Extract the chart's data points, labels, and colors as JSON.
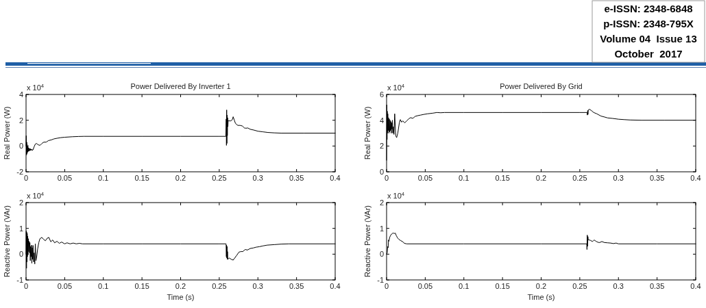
{
  "chart_data": [
    {
      "type": "line",
      "title": "Power Delivered By Inverter 1",
      "ylabel": "Real Power (W)",
      "annotations": [
        "x 10$^{4}$"
      ],
      "x": [
        0,
        0.0003,
        0.0006,
        0.0009,
        0.0012,
        0.0015,
        0.0018,
        0.0021,
        0.0024,
        0.0027,
        0.003,
        0.0035,
        0.004,
        0.0045,
        0.005,
        0.0055,
        0.006,
        0.0065,
        0.007,
        0.0075,
        0.008,
        0.0085,
        0.009,
        0.0105,
        0.012,
        0.0135,
        0.0155,
        0.018,
        0.0205,
        0.023,
        0.026,
        0.029,
        0.033,
        0.036,
        0.04,
        0.045,
        0.05,
        0.055,
        0.06,
        0.068,
        0.075,
        0.1,
        0.15,
        0.2,
        0.25,
        0.2585,
        0.259,
        0.2593,
        0.2596,
        0.2599,
        0.2602,
        0.2605,
        0.2608,
        0.2612,
        0.2615,
        0.262,
        0.265,
        0.267,
        0.268,
        0.2695,
        0.271,
        0.274,
        0.277,
        0.28,
        0.2825,
        0.2845,
        0.287,
        0.29,
        0.2945,
        0.3,
        0.3065,
        0.313,
        0.3212,
        0.33,
        0.36,
        0.4
      ],
      "series": [
        {
          "color": "#000000",
          "values": [
            0,
            0.8,
            -0.7,
            0.3,
            -0.6,
            0.1,
            -0.5,
            -0.05,
            -0.45,
            -0.1,
            -0.4,
            -0.15,
            -0.4,
            -0.2,
            -0.35,
            -0.2,
            -0.35,
            -0.25,
            -0.3,
            -0.25,
            -0.35,
            -0.3,
            -0.3,
            -0.05,
            0.15,
            0.2,
            0.1,
            0.05,
            0.2,
            0.3,
            0.3,
            0.42,
            0.48,
            0.55,
            0.6,
            0.65,
            0.68,
            0.7,
            0.72,
            0.74,
            0.75,
            0.75,
            0.75,
            0.75,
            0.75,
            0.75,
            2.1,
            0.05,
            2.8,
            0.2,
            2.4,
            0.8,
            2.2,
            1.5,
            2.0,
            1.95,
            1.95,
            2.05,
            2.27,
            2.0,
            1.75,
            1.6,
            1.6,
            1.55,
            1.4,
            1.38,
            1.4,
            1.3,
            1.24,
            1.15,
            1.1,
            1.05,
            1.02,
            1.0,
            1.0,
            1.0
          ]
        }
      ],
      "xlim": [
        0,
        0.4
      ],
      "xticks": [
        0,
        0.05,
        0.1,
        0.15,
        0.2,
        0.25,
        0.3,
        0.35,
        0.4
      ],
      "ylim": [
        -2,
        4
      ],
      "yticks": [
        -2,
        0,
        2,
        4
      ]
    },
    {
      "type": "line",
      "title": "Power Delivered By Grid",
      "ylabel": "Real Power (W)",
      "annotations": [
        "x 10$^{4}$",
        "e-ISSN: 2348-6848",
        "p-ISSN: 2348-795X",
        "Volume 04  Issue 13",
        "October  2017"
      ],
      "x": [
        0,
        0.0003,
        0.0006,
        0.0009,
        0.0012,
        0.0016,
        0.002,
        0.0025,
        0.003,
        0.0035,
        0.004,
        0.0045,
        0.005,
        0.0055,
        0.006,
        0.0065,
        0.007,
        0.0075,
        0.008,
        0.0088,
        0.0095,
        0.0105,
        0.0118,
        0.013,
        0.0145,
        0.0165,
        0.0178,
        0.0195,
        0.021,
        0.0235,
        0.026,
        0.0285,
        0.031,
        0.034,
        0.037,
        0.04,
        0.044,
        0.048,
        0.053,
        0.06,
        0.065,
        0.07,
        0.075,
        0.1,
        0.15,
        0.2,
        0.25,
        0.2595,
        0.2598,
        0.2602,
        0.2606,
        0.261,
        0.2625,
        0.265,
        0.268,
        0.272,
        0.2775,
        0.282,
        0.286,
        0.2925,
        0.3,
        0.307,
        0.315,
        0.33,
        0.36,
        0.4
      ],
      "series": [
        {
          "color": "#000000",
          "values": [
            0.9,
            5.2,
            2.5,
            4.7,
            3.0,
            4.5,
            3.2,
            4.2,
            3.0,
            4.1,
            3.1,
            4.0,
            3.2,
            3.9,
            3.0,
            3.8,
            3.3,
            4.0,
            3.0,
            3.5,
            2.9,
            4.5,
            2.8,
            2.65,
            3.0,
            3.8,
            4.05,
            3.85,
            3.95,
            3.8,
            3.95,
            4.1,
            4.2,
            4.15,
            4.3,
            4.35,
            4.4,
            4.45,
            4.5,
            4.55,
            4.6,
            4.58,
            4.6,
            4.6,
            4.6,
            4.6,
            4.6,
            4.6,
            4.4,
            4.75,
            4.45,
            4.8,
            4.85,
            4.75,
            4.6,
            4.5,
            4.32,
            4.25,
            4.18,
            4.14,
            4.08,
            4.05,
            4.02,
            4.0,
            4.0,
            4.0
          ]
        }
      ],
      "xlim": [
        0,
        0.4
      ],
      "xticks": [
        0,
        0.05,
        0.1,
        0.15,
        0.2,
        0.25,
        0.3,
        0.35,
        0.4
      ],
      "ylim": [
        0,
        6
      ],
      "yticks": [
        0,
        2,
        4,
        6
      ]
    },
    {
      "type": "line",
      "xlabel": "Time (s)",
      "ylabel": "Reactive Power (VAr)",
      "annotations": [
        "x 10$^{4}$"
      ],
      "x": [
        0,
        0.0003,
        0.0006,
        0.0009,
        0.0012,
        0.0015,
        0.0018,
        0.0021,
        0.0025,
        0.003,
        0.0035,
        0.004,
        0.0045,
        0.005,
        0.0055,
        0.006,
        0.0065,
        0.007,
        0.0075,
        0.008,
        0.0085,
        0.009,
        0.0098,
        0.0105,
        0.0113,
        0.012,
        0.0128,
        0.0138,
        0.015,
        0.0165,
        0.018,
        0.0205,
        0.0225,
        0.025,
        0.0275,
        0.0295,
        0.032,
        0.0345,
        0.037,
        0.04,
        0.043,
        0.046,
        0.05,
        0.053,
        0.057,
        0.061,
        0.065,
        0.069,
        0.073,
        0.1,
        0.15,
        0.2,
        0.25,
        0.2588,
        0.2592,
        0.2595,
        0.2598,
        0.2601,
        0.2604,
        0.2607,
        0.261,
        0.263,
        0.2655,
        0.268,
        0.27,
        0.2725,
        0.2755,
        0.278,
        0.2805,
        0.2835,
        0.2865,
        0.29,
        0.294,
        0.2975,
        0.302,
        0.3065,
        0.312,
        0.3212,
        0.33,
        0.34,
        0.4
      ],
      "series": [
        {
          "color": "#000000",
          "values": [
            0,
            0.9,
            -0.55,
            0.85,
            -0.3,
            0.8,
            -0.1,
            0.7,
            0.0,
            0.6,
            0.1,
            0.5,
            0.05,
            0.45,
            -0.25,
            0.3,
            -0.1,
            0.35,
            -0.35,
            0.25,
            -0.2,
            0.34,
            -0.3,
            0.05,
            -0.38,
            0.4,
            -0.25,
            -0.1,
            0.2,
            0.45,
            0.6,
            0.65,
            0.58,
            0.52,
            0.62,
            0.65,
            0.48,
            0.55,
            0.44,
            0.5,
            0.42,
            0.47,
            0.4,
            0.44,
            0.4,
            0.43,
            0.4,
            0.42,
            0.4,
            0.4,
            0.4,
            0.4,
            0.4,
            0.4,
            -0.1,
            0.35,
            -0.15,
            0.3,
            -0.2,
            0.1,
            -0.2,
            -0.15,
            -0.2,
            -0.23,
            -0.15,
            -0.05,
            0.08,
            0.1,
            0.1,
            0.18,
            0.16,
            0.22,
            0.24,
            0.27,
            0.29,
            0.32,
            0.35,
            0.37,
            0.39,
            0.4,
            0.4
          ]
        }
      ],
      "xlim": [
        0,
        0.4
      ],
      "xticks": [
        0,
        0.05,
        0.1,
        0.15,
        0.2,
        0.25,
        0.3,
        0.35,
        0.4
      ],
      "ylim": [
        -1,
        2
      ],
      "yticks": [
        -1,
        0,
        1,
        2
      ]
    },
    {
      "type": "line",
      "xlabel": "Time (s)",
      "ylabel": "Reactive Power (VAr)",
      "annotations": [
        "x 10$^{4}$"
      ],
      "x": [
        0,
        0.0008,
        0.0015,
        0.002,
        0.0025,
        0.003,
        0.004,
        0.005,
        0.0065,
        0.0083,
        0.01,
        0.0112,
        0.0127,
        0.0142,
        0.0157,
        0.018,
        0.0205,
        0.0231,
        0.026,
        0.1,
        0.2,
        0.259,
        0.2593,
        0.2597,
        0.26,
        0.2605,
        0.261,
        0.2625,
        0.264,
        0.2665,
        0.2685,
        0.271,
        0.2735,
        0.2757,
        0.2785,
        0.282,
        0.286,
        0.29,
        0.2935,
        0.297,
        0.3,
        0.35,
        0.4
      ],
      "series": [
        {
          "color": "#000000",
          "values": [
            0,
            0.05,
            0.3,
            0.25,
            0.55,
            0.5,
            0.65,
            0.72,
            0.78,
            0.82,
            0.8,
            0.82,
            0.71,
            0.63,
            0.58,
            0.53,
            0.49,
            0.42,
            0.4,
            0.4,
            0.4,
            0.4,
            0.18,
            0.74,
            0.3,
            0.68,
            0.55,
            0.55,
            0.53,
            0.49,
            0.55,
            0.5,
            0.46,
            0.45,
            0.49,
            0.45,
            0.44,
            0.43,
            0.41,
            0.43,
            0.4,
            0.4,
            0.4
          ]
        }
      ],
      "xlim": [
        0,
        0.4
      ],
      "xticks": [
        0,
        0.05,
        0.1,
        0.15,
        0.2,
        0.25,
        0.3,
        0.35,
        0.4
      ],
      "ylim": [
        -1,
        2
      ],
      "yticks": [
        -1,
        0,
        1,
        2
      ]
    }
  ]
}
